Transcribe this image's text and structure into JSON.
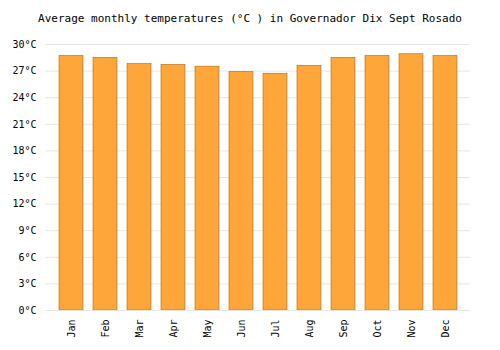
{
  "chart_data": {
    "type": "bar",
    "title": "Average monthly temperatures (°C ) in Governador Dix Sept Rosado",
    "categories": [
      "Jan",
      "Feb",
      "Mar",
      "Apr",
      "May",
      "Jun",
      "Jul",
      "Aug",
      "Sep",
      "Oct",
      "Nov",
      "Dec"
    ],
    "values": [
      28.7,
      28.5,
      27.8,
      27.7,
      27.5,
      26.9,
      26.7,
      27.6,
      28.5,
      28.7,
      28.9,
      28.7
    ],
    "color": "#ffa63a",
    "ylim": [
      0,
      30
    ],
    "yticks": [
      {
        "value": 0,
        "label": "0°C"
      },
      {
        "value": 3,
        "label": "3°C"
      },
      {
        "value": 6,
        "label": "6°C"
      },
      {
        "value": 9,
        "label": "9°C"
      },
      {
        "value": 12,
        "label": "12°C"
      },
      {
        "value": 15,
        "label": "15°C"
      },
      {
        "value": 18,
        "label": "18°C"
      },
      {
        "value": 21,
        "label": "21°C"
      },
      {
        "value": 24,
        "label": "24°C"
      },
      {
        "value": 27,
        "label": "27°C"
      },
      {
        "value": 30,
        "label": "30°C"
      }
    ],
    "grid": true
  }
}
